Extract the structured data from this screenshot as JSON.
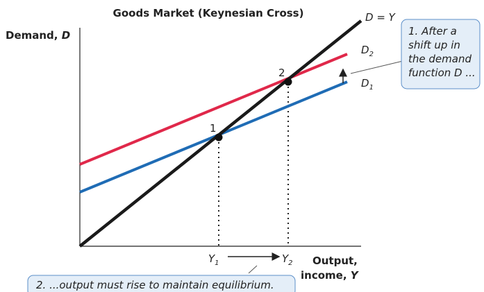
{
  "title": "Goods Market (Keynesian Cross)",
  "y_axis_label": {
    "text": "Demand,",
    "var": "D"
  },
  "x_axis_label": {
    "line1": "Output,",
    "line2": "income,",
    "var": "Y"
  },
  "curves": [
    {
      "base": "D = Y",
      "sub": ""
    },
    {
      "base": "D",
      "sub": "2"
    },
    {
      "base": "D",
      "sub": "1"
    }
  ],
  "points": [
    {
      "label": "1"
    },
    {
      "label": "2"
    }
  ],
  "x_marks": [
    {
      "base": "Y",
      "sub": "1"
    },
    {
      "base": "Y",
      "sub": "2"
    }
  ],
  "annotations": [
    {
      "lines": [
        "1. After a",
        "shift up in",
        "the demand",
        "function D ..."
      ]
    },
    {
      "lines": [
        "2. ...output must rise to maintain equilibrium."
      ]
    }
  ]
}
